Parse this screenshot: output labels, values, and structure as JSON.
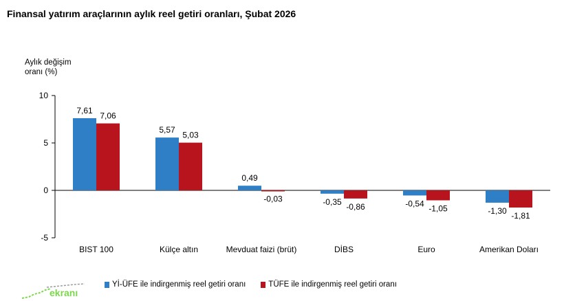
{
  "title": "Finansal yatırım araçlarının aylık reel getiri oranları, Şubat 2026",
  "watermark": "ekranı",
  "chart_data": {
    "type": "bar",
    "title": "Finansal yatırım araçlarının aylık reel getiri oranları, Şubat 2026",
    "ylabel_line1": "Aylık değişim",
    "ylabel_line2": "oranı (%)",
    "xlabel": "",
    "ylim": [
      -5,
      10
    ],
    "yticks": [
      "10",
      "5",
      "0",
      "-5"
    ],
    "categories": [
      "BIST 100",
      "Külçe altın",
      "Mevduat faizi (brüt)",
      "DİBS",
      "Euro",
      "Amerikan Doları"
    ],
    "series": [
      {
        "name": "Yİ-ÜFE ile indirgenmiş reel getiri oranı",
        "color": "#2e7fc6",
        "values": [
          7.61,
          5.57,
          0.49,
          -0.35,
          -0.54,
          -1.3
        ],
        "labels": [
          "7,61",
          "5,57",
          "0,49",
          "-0,35",
          "-0,54",
          "-1,30"
        ]
      },
      {
        "name": "TÜFE ile indirgenmiş reel getiri oranı",
        "color": "#b8141d",
        "values": [
          7.06,
          5.03,
          -0.03,
          -0.86,
          -1.05,
          -1.81
        ],
        "labels": [
          "7,06",
          "5,03",
          "-0,03",
          "-0,86",
          "-1,05",
          "-1,81"
        ]
      }
    ],
    "grid": false,
    "legend_position": "bottom"
  }
}
